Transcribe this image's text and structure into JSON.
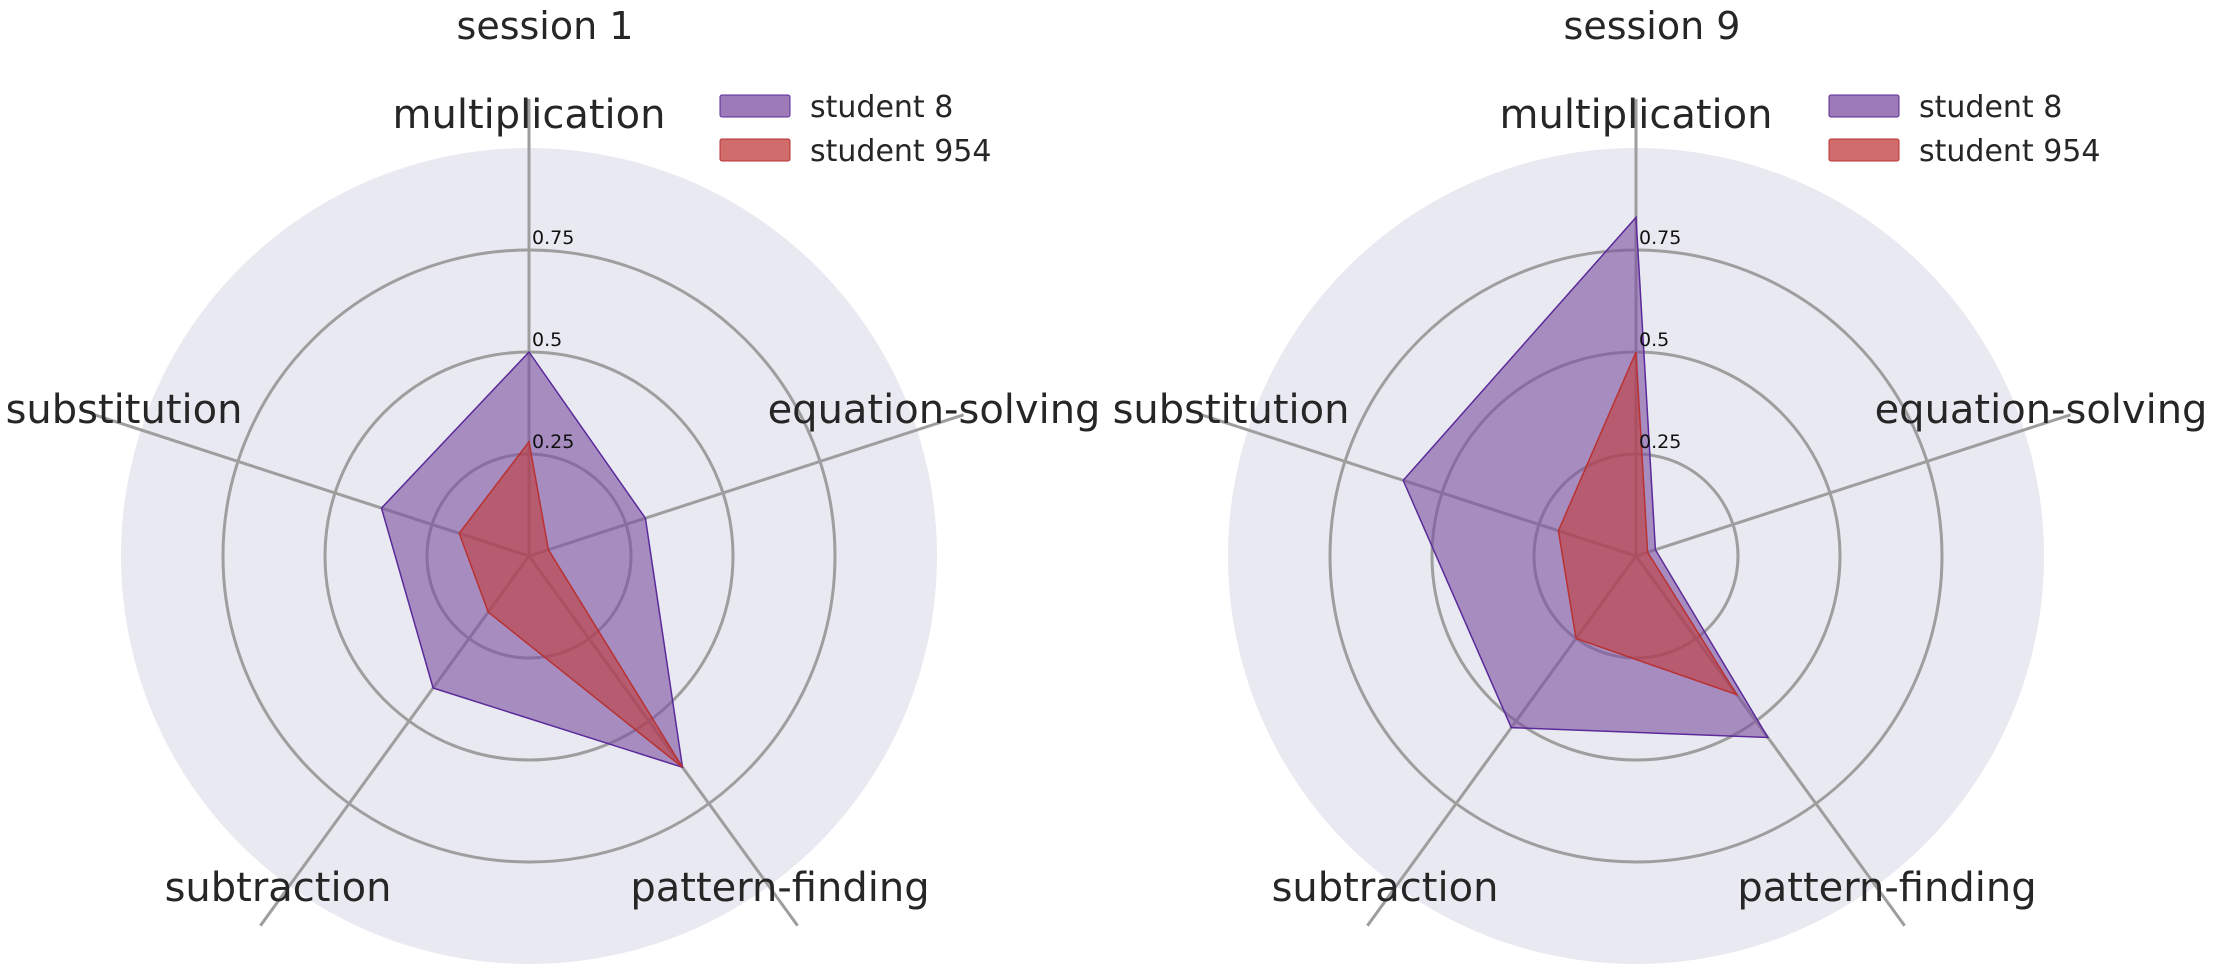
{
  "chart_data": [
    {
      "type": "radar",
      "title": "session 1",
      "axes": [
        "multiplication",
        "equation-solving",
        "pattern-finding",
        "subtraction",
        "substitution"
      ],
      "rticks": [
        0.25,
        0.5,
        0.75
      ],
      "rtick_labels": [
        "0.25",
        "0.5",
        "0.75"
      ],
      "rlim": [
        0,
        1
      ],
      "legend_position": "top-right",
      "series": [
        {
          "name": "student 8",
          "values": [
            0.5,
            0.3,
            0.64,
            0.4,
            0.38
          ],
          "color": "#7b4fa0"
        },
        {
          "name": "student 954",
          "values": [
            0.28,
            0.05,
            0.64,
            0.17,
            0.18
          ],
          "color": "#c23b3b"
        }
      ]
    },
    {
      "type": "radar",
      "title": "session 9",
      "axes": [
        "multiplication",
        "equation-solving",
        "pattern-finding",
        "subtraction",
        "substitution"
      ],
      "rticks": [
        0.25,
        0.5,
        0.75
      ],
      "rtick_labels": [
        "0.25",
        "0.5",
        "0.75"
      ],
      "rlim": [
        0,
        1
      ],
      "legend_position": "top-right",
      "series": [
        {
          "name": "student 8",
          "values": [
            0.83,
            0.05,
            0.55,
            0.52,
            0.6
          ],
          "color": "#7b4fa0"
        },
        {
          "name": "student 954",
          "values": [
            0.5,
            0.03,
            0.42,
            0.25,
            0.2
          ],
          "color": "#c23b3b"
        }
      ]
    }
  ],
  "colors": {
    "background_disc": "#e9e9f1",
    "grid": "#9e9e9e",
    "student8_fill": "#7b4fa0",
    "student8_edge": "#5b2a9a",
    "student954_fill": "#c23b3b",
    "student954_edge": "#b83232"
  }
}
